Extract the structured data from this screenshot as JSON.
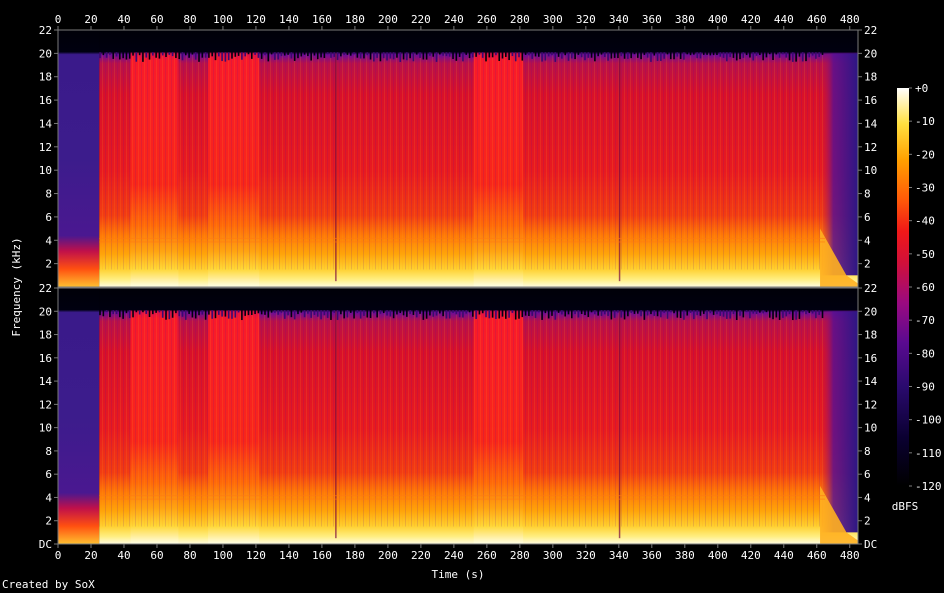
{
  "footer": {
    "credit": "Created by SoX"
  },
  "colors": {
    "background": "#000000",
    "text": "#ffffff",
    "axis": "#7a7a7a"
  },
  "chart_data": {
    "type": "heatmap",
    "subtype": "spectrogram",
    "channels": 2,
    "xlabel": "Time (s)",
    "ylabel": "Frequency (kHz)",
    "xlim": [
      0,
      485
    ],
    "ylim_khz": [
      0,
      22
    ],
    "x_ticks": [
      0,
      20,
      40,
      60,
      80,
      100,
      120,
      140,
      160,
      180,
      200,
      220,
      240,
      260,
      280,
      300,
      320,
      340,
      360,
      380,
      400,
      420,
      440,
      460,
      480
    ],
    "y_ticks_top": [
      "22",
      "20",
      "18",
      "16",
      "14",
      "12",
      "10",
      "8",
      "6",
      "4",
      "2"
    ],
    "y_ticks_bottom": [
      "22",
      "20",
      "18",
      "16",
      "14",
      "12",
      "10",
      "8",
      "6",
      "4",
      "2",
      "DC"
    ],
    "colorbar": {
      "unit": "dBFS",
      "range": [
        -120,
        0
      ],
      "ticks": [
        "+0",
        "-10",
        "-20",
        "-30",
        "-40",
        "-50",
        "-60",
        "-70",
        "-80",
        "-90",
        "-100",
        "-110",
        "-120"
      ]
    },
    "intensity_profile": {
      "note": "approximate dBFS level bands over time (s)",
      "segments": [
        {
          "t": [
            0,
            25
          ],
          "level": "quiet intro"
        },
        {
          "t": [
            25,
            465
          ],
          "level": "loud, content to 20 kHz"
        },
        {
          "t": [
            465,
            485
          ],
          "level": "fade out"
        }
      ],
      "bright_blocks_s": [
        [
          44,
          73
        ],
        [
          91,
          122
        ],
        [
          252,
          282
        ]
      ]
    }
  }
}
